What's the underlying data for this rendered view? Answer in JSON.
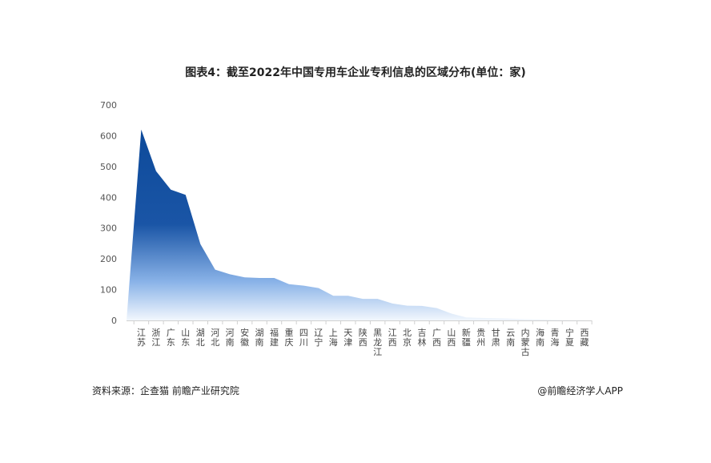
{
  "chart_data": {
    "type": "area",
    "title": "图表4：截至2022年中国专用车企业专利信息的区域分布(单位：家)",
    "xlabel": "",
    "ylabel": "",
    "ylim": [
      0,
      700
    ],
    "yticks": [
      0,
      100,
      200,
      300,
      400,
      500,
      600,
      700
    ],
    "grid": false,
    "categories": [
      "江苏",
      "浙江",
      "广东",
      "山东",
      "湖北",
      "河北",
      "河南",
      "安徽",
      "湖南",
      "福建",
      "重庆",
      "四川",
      "辽宁",
      "上海",
      "天津",
      "陕西",
      "黑龙江",
      "江西",
      "北京",
      "吉林",
      "广西",
      "山西",
      "新疆",
      "贵州",
      "甘肃",
      "云南",
      "内蒙古",
      "海南",
      "青海",
      "宁夏",
      "西藏"
    ],
    "values": [
      620,
      485,
      425,
      408,
      248,
      165,
      150,
      140,
      138,
      138,
      118,
      113,
      105,
      80,
      80,
      70,
      70,
      55,
      48,
      47,
      40,
      22,
      10,
      8,
      7,
      6,
      4,
      3,
      2,
      1,
      1
    ],
    "colors": {
      "top": "#0f4c9e",
      "bottom": "#e8f1fc"
    }
  },
  "footer": {
    "source": "资料来源：企查猫 前瞻产业研究院",
    "credit": "@前瞻经济学人APP"
  }
}
